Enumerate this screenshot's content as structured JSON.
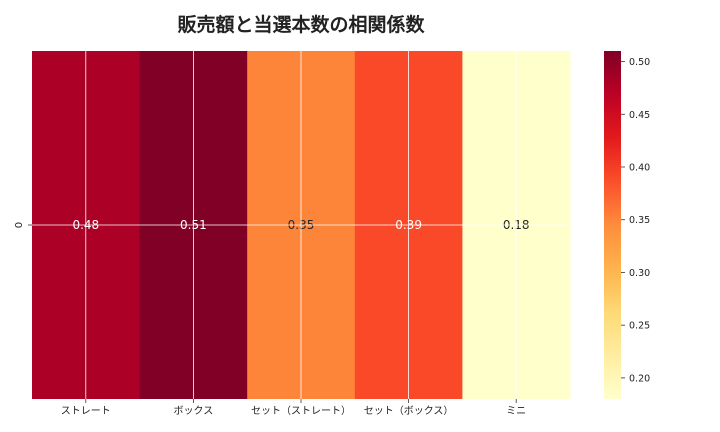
{
  "chart_data": {
    "type": "heatmap",
    "title": "販売額と当選本数の相関係数",
    "xlabel": "",
    "ylabel": "",
    "row_labels": [
      "0"
    ],
    "columns": [
      "ストレート",
      "ボックス",
      "セット（ストレート）",
      "セット（ボックス）",
      "ミニ"
    ],
    "values": [
      [
        0.48,
        0.51,
        0.35,
        0.39,
        0.18
      ]
    ],
    "value_labels": [
      "0.48",
      "0.51",
      "0.35",
      "0.39",
      "0.18"
    ],
    "colormap": "YlOrRd",
    "colorbar": {
      "range": [
        0.18,
        0.51
      ],
      "ticks": [
        0.2,
        0.25,
        0.3,
        0.35,
        0.4,
        0.45,
        0.5
      ],
      "tick_labels": [
        "0.20",
        "0.25",
        "0.30",
        "0.35",
        "0.40",
        "0.45",
        "0.50"
      ]
    },
    "grid": true,
    "grid_color": "#ffffff"
  }
}
